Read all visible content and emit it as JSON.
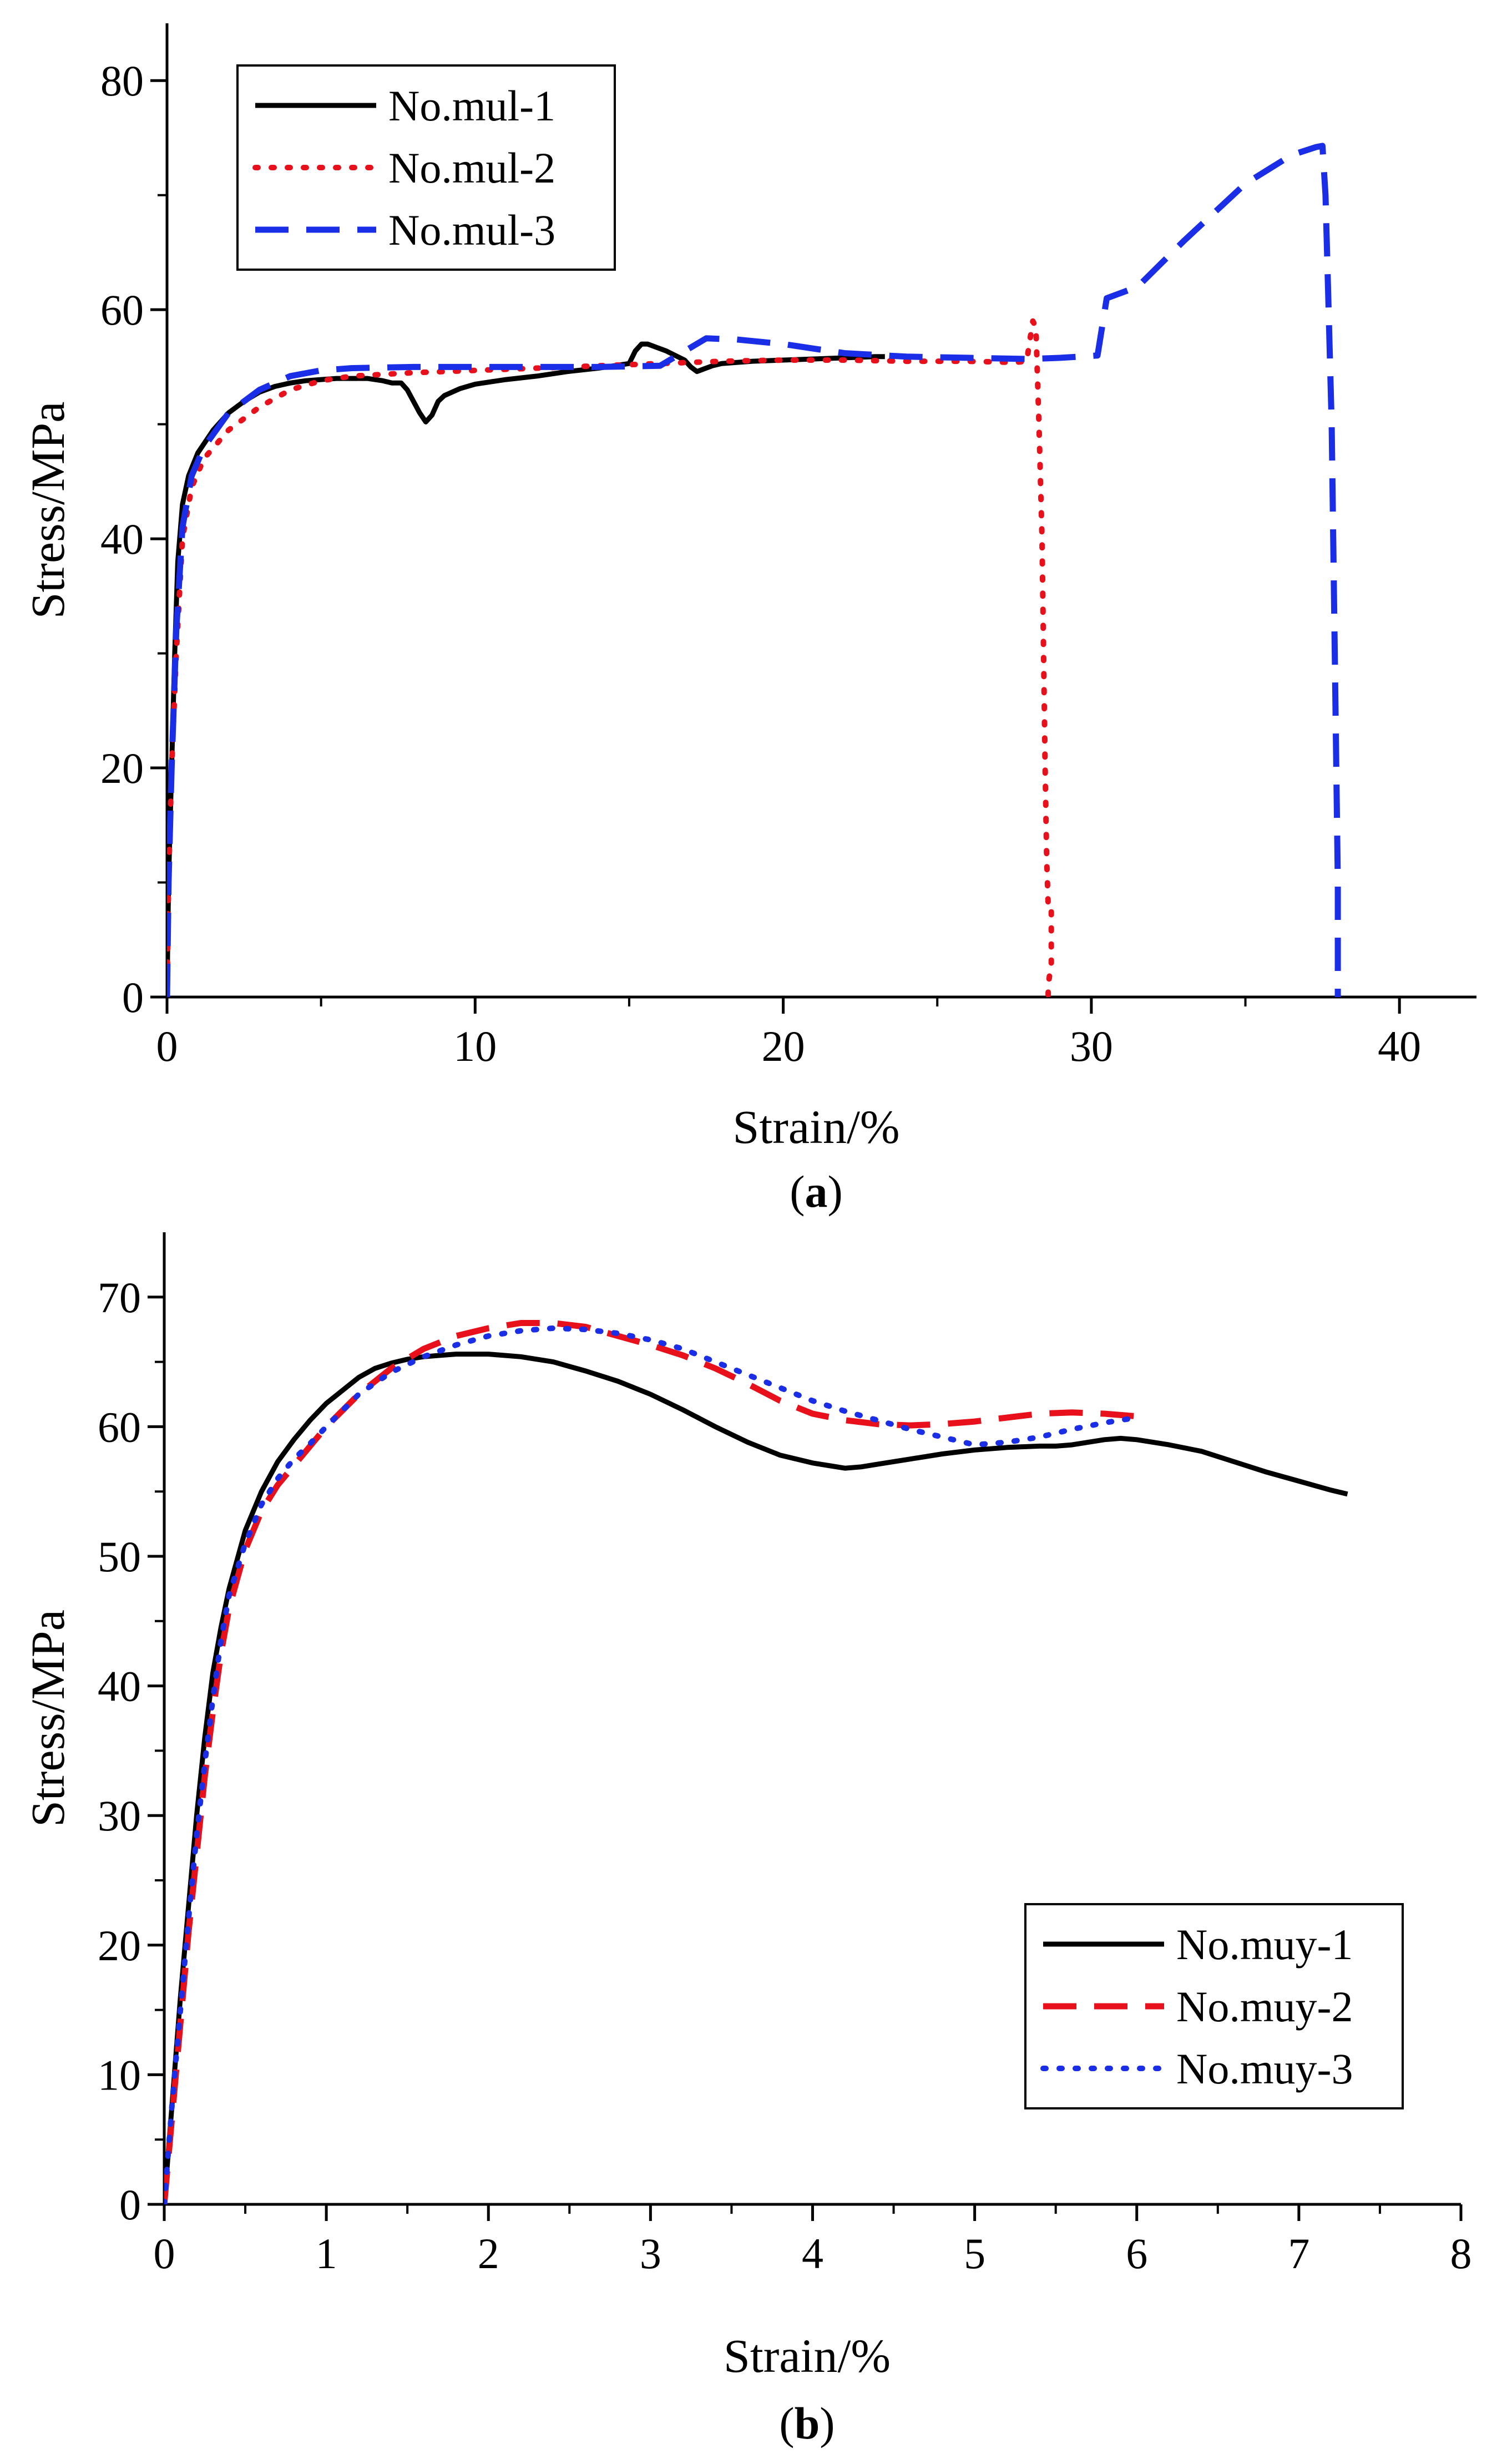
{
  "chart_data": [
    {
      "type": "line",
      "panel": "a",
      "caption": {
        "open": "(",
        "letter": "a",
        "close": ")"
      },
      "xlabel": "Strain/%",
      "ylabel": "Stress/MPa",
      "xlim": [
        0,
        42.5
      ],
      "ylim": [
        0,
        85
      ],
      "xticks": [
        0,
        10,
        20,
        30,
        40
      ],
      "yticks": [
        0,
        20,
        40,
        60,
        80
      ],
      "xminor": [
        5,
        15,
        25,
        35
      ],
      "yminor": [
        10,
        30,
        50,
        70
      ],
      "legend": {
        "position": "top-left"
      },
      "series": [
        {
          "name": "No.mul-1",
          "color": "#000000",
          "style": "solid",
          "x": [
            0,
            0.05,
            0.15,
            0.25,
            0.35,
            0.5,
            0.7,
            1,
            1.5,
            2,
            2.5,
            3,
            3.5,
            4,
            4.5,
            5,
            5.5,
            6,
            6.5,
            7,
            7.3,
            7.6,
            7.8,
            8,
            8.2,
            8.4,
            8.6,
            8.8,
            9,
            9.5,
            10,
            11,
            12,
            13,
            14,
            15,
            15.2,
            15.4,
            15.6,
            15.9,
            16.2,
            16.5,
            16.8,
            17,
            17.2,
            17.4,
            17.7,
            18,
            19,
            20,
            21,
            22,
            23,
            23.3
          ],
          "y": [
            0,
            10,
            20,
            30,
            38,
            43,
            45.5,
            47.5,
            49.5,
            51,
            52,
            52.8,
            53.3,
            53.6,
            53.8,
            53.9,
            54,
            54,
            54,
            53.8,
            53.6,
            53.6,
            53,
            52,
            51,
            50.2,
            50.8,
            52,
            52.5,
            53.1,
            53.5,
            53.9,
            54.2,
            54.6,
            54.9,
            55.3,
            56.4,
            57,
            57,
            56.7,
            56.4,
            56,
            55.6,
            55,
            54.6,
            54.8,
            55.1,
            55.3,
            55.5,
            55.6,
            55.7,
            55.8,
            55.9,
            55.9
          ]
        },
        {
          "name": "No.mul-2",
          "color": "#e8101a",
          "style": "dotted",
          "x": [
            0,
            0.05,
            0.15,
            0.3,
            0.5,
            0.8,
            1.2,
            2,
            3,
            4,
            5,
            6,
            8,
            10,
            12,
            14,
            16,
            18,
            20,
            22,
            24,
            26,
            27.5,
            27.9,
            28.1,
            28.2,
            28.3,
            28.4,
            28.45,
            28.5,
            28.55,
            28.6,
            28.7,
            28.7,
            28.6,
            28.6
          ],
          "y": [
            0,
            10,
            20,
            30,
            40,
            44.5,
            47,
            49.5,
            51.5,
            53,
            53.8,
            54.2,
            54.5,
            54.7,
            54.9,
            55.1,
            55.3,
            55.5,
            55.6,
            55.6,
            55.5,
            55.5,
            55.4,
            55.5,
            59,
            58.5,
            50,
            40,
            30,
            20,
            12,
            8,
            8,
            3,
            1,
            0
          ]
        },
        {
          "name": "No.mul-3",
          "color": "#1a2ee8",
          "style": "dashed",
          "x": [
            0,
            0.05,
            0.15,
            0.3,
            0.5,
            0.8,
            1.2,
            2,
            3,
            4,
            5,
            6,
            8,
            10,
            12,
            14,
            16,
            17.5,
            18.5,
            20,
            21,
            22,
            24,
            26,
            28,
            29,
            30.2,
            30.5,
            31.5,
            33,
            35,
            36.5,
            37.3,
            37.5,
            37.6,
            37.7,
            37.8,
            37.9,
            38,
            38
          ],
          "y": [
            0,
            10,
            20,
            32,
            41,
            45.5,
            48,
            51,
            53,
            54.2,
            54.7,
            54.9,
            55,
            55,
            55,
            55,
            55.1,
            57.5,
            57.4,
            57,
            56.6,
            56.2,
            55.9,
            55.8,
            55.7,
            55.8,
            56,
            61,
            62,
            66,
            71,
            73.5,
            74.2,
            74.3,
            70,
            60,
            50,
            30,
            10,
            0
          ]
        }
      ]
    },
    {
      "type": "line",
      "panel": "b",
      "caption": {
        "open": "(",
        "letter": "b",
        "close": ")"
      },
      "xlabel": "Strain/%",
      "ylabel": "Stress/MPa",
      "xlim": [
        0,
        8
      ],
      "ylim": [
        0,
        75
      ],
      "xticks": [
        0,
        1,
        2,
        3,
        4,
        5,
        6,
        7,
        8
      ],
      "yticks": [
        0,
        10,
        20,
        30,
        40,
        50,
        60,
        70
      ],
      "xminor": [
        0.5,
        1.5,
        2.5,
        3.5,
        4.5,
        5.5,
        6.5,
        7.5
      ],
      "yminor": [
        5,
        15,
        25,
        35,
        45,
        55,
        65
      ],
      "legend": {
        "position": "bottom-right"
      },
      "series": [
        {
          "name": "No.muy-1",
          "color": "#000000",
          "style": "solid",
          "x": [
            0,
            0.05,
            0.1,
            0.15,
            0.2,
            0.25,
            0.3,
            0.35,
            0.4,
            0.5,
            0.6,
            0.7,
            0.8,
            0.9,
            1,
            1.1,
            1.2,
            1.3,
            1.4,
            1.5,
            1.6,
            1.7,
            1.8,
            1.9,
            2,
            2.2,
            2.4,
            2.6,
            2.8,
            3,
            3.2,
            3.4,
            3.6,
            3.8,
            4,
            4.1,
            4.2,
            4.3,
            4.4,
            4.6,
            4.8,
            5,
            5.2,
            5.4,
            5.5,
            5.6,
            5.8,
            5.9,
            6,
            6.2,
            6.4,
            6.6,
            6.8,
            7,
            7.2,
            7.3
          ],
          "y": [
            0,
            8,
            16,
            23,
            30,
            36,
            41,
            44.5,
            47.5,
            52,
            55,
            57.3,
            59,
            60.5,
            61.8,
            62.8,
            63.8,
            64.5,
            64.9,
            65.2,
            65.4,
            65.5,
            65.6,
            65.6,
            65.6,
            65.4,
            65,
            64.3,
            63.5,
            62.5,
            61.3,
            60,
            58.8,
            57.8,
            57.2,
            57,
            56.8,
            56.9,
            57.1,
            57.5,
            57.9,
            58.2,
            58.4,
            58.5,
            58.5,
            58.6,
            59,
            59.1,
            59,
            58.6,
            58.1,
            57.3,
            56.5,
            55.8,
            55.1,
            54.8
          ]
        },
        {
          "name": "No.muy-2",
          "color": "#e8101a",
          "style": "dashed",
          "x": [
            0,
            0.05,
            0.1,
            0.15,
            0.2,
            0.25,
            0.3,
            0.35,
            0.4,
            0.5,
            0.6,
            0.7,
            0.8,
            0.9,
            1,
            1.2,
            1.4,
            1.6,
            1.8,
            2,
            2.2,
            2.4,
            2.6,
            2.8,
            3,
            3.2,
            3.4,
            3.6,
            3.8,
            4,
            4.2,
            4.4,
            4.6,
            4.8,
            5,
            5.2,
            5.4,
            5.6,
            5.8,
            6
          ],
          "y": [
            0,
            7,
            14,
            21,
            27,
            33,
            38,
            42.5,
            46,
            50.5,
            53.5,
            55.5,
            57,
            58.5,
            60,
            62.5,
            64.5,
            66,
            67,
            67.6,
            68,
            68,
            67.7,
            67,
            66.3,
            65.5,
            64.5,
            63.3,
            62,
            61,
            60.5,
            60.2,
            60.1,
            60.2,
            60.4,
            60.7,
            61,
            61.1,
            61,
            60.8
          ]
        },
        {
          "name": "No.muy-3",
          "color": "#1a2ee8",
          "style": "dotted",
          "x": [
            0,
            0.05,
            0.1,
            0.15,
            0.2,
            0.25,
            0.3,
            0.35,
            0.4,
            0.5,
            0.6,
            0.7,
            0.8,
            0.9,
            1,
            1.2,
            1.4,
            1.6,
            1.8,
            2,
            2.2,
            2.4,
            2.6,
            2.8,
            3,
            3.2,
            3.4,
            3.6,
            3.8,
            4,
            4.2,
            4.4,
            4.6,
            4.8,
            5,
            5.2,
            5.4,
            5.6,
            5.8,
            6
          ],
          "y": [
            0,
            8,
            15,
            22,
            28.5,
            34,
            39,
            43.5,
            47,
            51,
            54,
            56,
            57.5,
            58.7,
            60,
            62.5,
            64.2,
            65.4,
            66.3,
            67,
            67.4,
            67.6,
            67.5,
            67.2,
            66.7,
            66,
            65,
            64,
            63,
            62,
            61.2,
            60.5,
            59.8,
            59.2,
            58.6,
            58.8,
            59.2,
            59.8,
            60.3,
            60.7
          ]
        }
      ]
    }
  ]
}
